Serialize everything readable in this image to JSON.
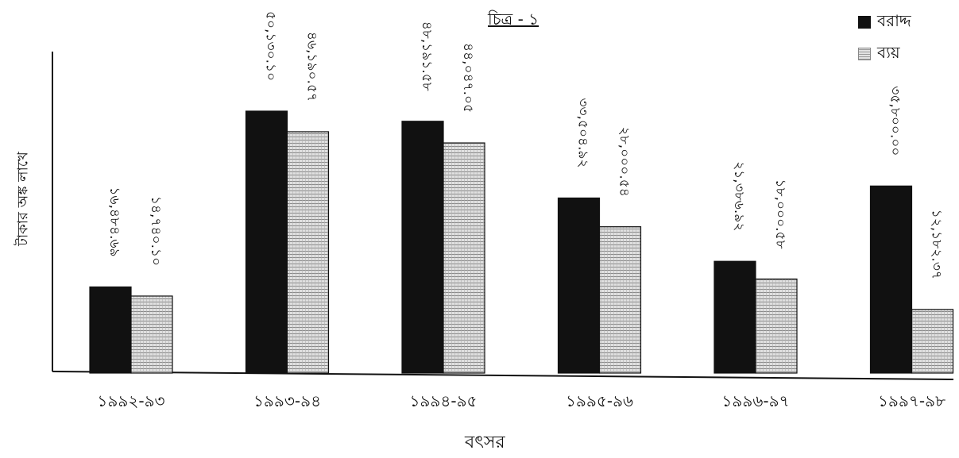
{
  "chart_data": {
    "type": "bar",
    "title": "চিত্র - ১",
    "xlabel": "বৎসর",
    "ylabel": "টাকার অঙ্ক লাখে",
    "categories": [
      "১৯৯২-৯৩",
      "১৯৯৩-৯৪",
      "১৯৯৪-৯৫",
      "১৯৯৫-৯৬",
      "১৯৯৬-৯৭",
      "১৯৯৭-৯৮"
    ],
    "series": [
      {
        "name": "বরাদ্দ",
        "values": [
          16484.69,
          50130.1,
          48191.58,
          33504.92,
          21386.92,
          35800.0
        ],
        "labels": [
          "১৬,৪৮৪.৬৯",
          "৫০,১৩০.১০",
          "৪৮,১৯১.৫৮",
          "৩৩,৫০৪.৯২",
          "২১,৩৮৬.৯২",
          "৩৫,৮০০.০০"
        ]
      },
      {
        "name": "ব্যয়",
        "values": [
          14740.1,
          46190.57,
          44047.05,
          28000.54,
          18000.58,
          12182.37
        ],
        "labels": [
          "১৪,৭৪০.১০",
          "৪৬,১৯০.৫৭",
          "৪৪,০৪৭.০৫",
          "২৮,০০০.৫৪",
          "১৮,০০০.৫৮",
          "১২,১৮২.৩৭"
        ]
      }
    ],
    "ylim": [
      0,
      60000
    ],
    "grid": false,
    "legend_position": "top-right",
    "colors": {
      "বরাদ্দ": "#111111",
      "ব্যয়": "#cfcfcf"
    }
  }
}
